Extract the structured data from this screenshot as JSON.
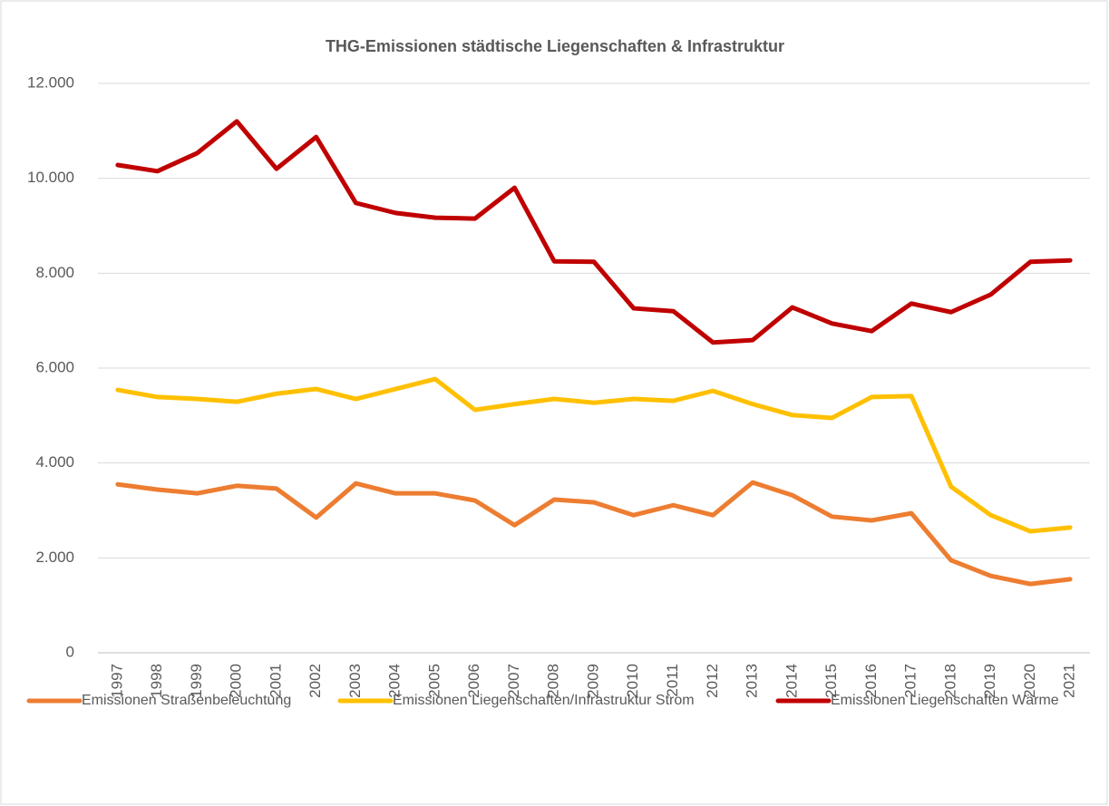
{
  "chart_data": {
    "type": "line",
    "title": "THG-Emissionen städtische Liegenschaften & Infrastruktur",
    "categories": [
      "1997",
      "1998",
      "1999",
      "2000",
      "2001",
      "2002",
      "2003",
      "2004",
      "2005",
      "2006",
      "2007",
      "2008",
      "2009",
      "2010",
      "2011",
      "2012",
      "2013",
      "2014",
      "2015",
      "2016",
      "2017",
      "2018",
      "2019",
      "2020",
      "2021"
    ],
    "series": [
      {
        "name": "Emissionen Straßenbeleuchtung",
        "color": "#ed7d31",
        "values": [
          3550,
          3440,
          3360,
          3520,
          3460,
          2850,
          3570,
          3360,
          3360,
          3210,
          2690,
          3230,
          3170,
          2900,
          3110,
          2900,
          3590,
          3320,
          2870,
          2790,
          2940,
          1950,
          1620,
          1450,
          1550
        ]
      },
      {
        "name": "Emissionen Liegenschaften/Infrastruktur Strom",
        "color": "#ffc000",
        "values": [
          5540,
          5390,
          5350,
          5290,
          5460,
          5560,
          5350,
          5560,
          5770,
          5120,
          5240,
          5350,
          5270,
          5350,
          5310,
          5520,
          5240,
          5010,
          4950,
          5390,
          5410,
          3500,
          2900,
          2560,
          2640
        ]
      },
      {
        "name": "Emissionen Liegenschaften Wärme",
        "color": "#c00000",
        "values": [
          10280,
          10150,
          10530,
          11200,
          10200,
          10870,
          9480,
          9270,
          9170,
          9150,
          9800,
          8250,
          8240,
          7260,
          7200,
          6540,
          6590,
          7280,
          6940,
          6780,
          7360,
          7180,
          7550,
          8240,
          8270
        ]
      }
    ],
    "ylim": [
      0,
      12000
    ],
    "yticks": [
      0,
      {
        "value": 2000,
        "label": "2.000"
      },
      {
        "value": 4000,
        "label": "4.000"
      },
      {
        "value": 6000,
        "label": "6.000"
      },
      {
        "value": 8000,
        "label": "8.000"
      },
      {
        "value": 10000,
        "label": "10.000"
      },
      {
        "value": 12000,
        "label": "12.000"
      }
    ],
    "grid": true,
    "legend": "bottom"
  }
}
